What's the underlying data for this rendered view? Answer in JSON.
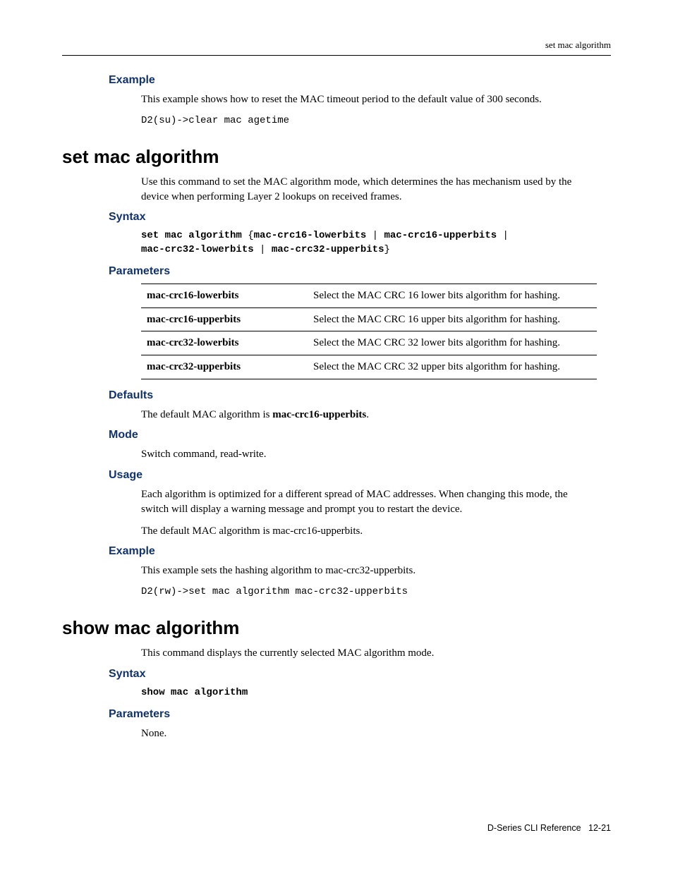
{
  "colors": {
    "heading_blue": "#10326f",
    "text": "#000000",
    "rule": "#000000",
    "background": "#ffffff"
  },
  "typography": {
    "body_font": "Palatino Linotype, Book Antiqua, Palatino, Georgia, serif",
    "heading_font": "Arial, Helvetica, sans-serif",
    "mono_font": "Courier New, Courier, monospace",
    "body_size_pt": 11,
    "h1_size_pt": 20,
    "h3_size_pt": 12
  },
  "running_head": "set mac algorithm",
  "example1": {
    "heading": "Example",
    "text": "This example shows how to reset the MAC timeout period to the default value of 300 seconds.",
    "code": "D2(su)->clear mac agetime"
  },
  "set_mac": {
    "title": "set mac algorithm",
    "intro": "Use this command to set the MAC algorithm mode, which determines the has mechanism used by the device when performing Layer 2 lookups on received frames.",
    "syntax_heading": "Syntax",
    "syntax_prefix": "set mac algorithm",
    "syntax_opts": [
      "mac-crc16-lowerbits",
      "mac-crc16-upperbits",
      "mac-crc32-lowerbits",
      "mac-crc32-upperbits"
    ],
    "params_heading": "Parameters",
    "params": [
      {
        "name": "mac-crc16-lowerbits",
        "desc": "Select the MAC CRC 16 lower bits algorithm for hashing."
      },
      {
        "name": "mac-crc16-upperbits",
        "desc": "Select the MAC CRC 16 upper bits algorithm for hashing."
      },
      {
        "name": "mac-crc32-lowerbits",
        "desc": "Select the MAC CRC 32 lower bits algorithm for hashing."
      },
      {
        "name": "mac-crc32-upperbits",
        "desc": "Select the MAC CRC 32 upper bits algorithm for hashing."
      }
    ],
    "defaults_heading": "Defaults",
    "defaults_text_pre": "The default MAC algorithm is ",
    "defaults_value": "mac-crc16-upperbits",
    "defaults_text_post": ".",
    "mode_heading": "Mode",
    "mode_text": "Switch command, read-write.",
    "usage_heading": "Usage",
    "usage_p1": "Each algorithm is optimized for a different spread of MAC addresses. When changing this mode, the switch will display a warning message and prompt you to restart the device.",
    "usage_p2": "The default MAC algorithm is mac-crc16-upperbits.",
    "example_heading": "Example",
    "example_text": "This example sets the hashing algorithm to mac-crc32-upperbits.",
    "example_code": "D2(rw)->set mac algorithm mac-crc32-upperbits"
  },
  "show_mac": {
    "title": "show mac algorithm",
    "intro": "This command displays the currently selected MAC algorithm mode.",
    "syntax_heading": "Syntax",
    "syntax_code": "show mac algorithm",
    "params_heading": "Parameters",
    "params_text": "None."
  },
  "footer": {
    "doc": "D-Series CLI Reference",
    "page": "12-21"
  }
}
